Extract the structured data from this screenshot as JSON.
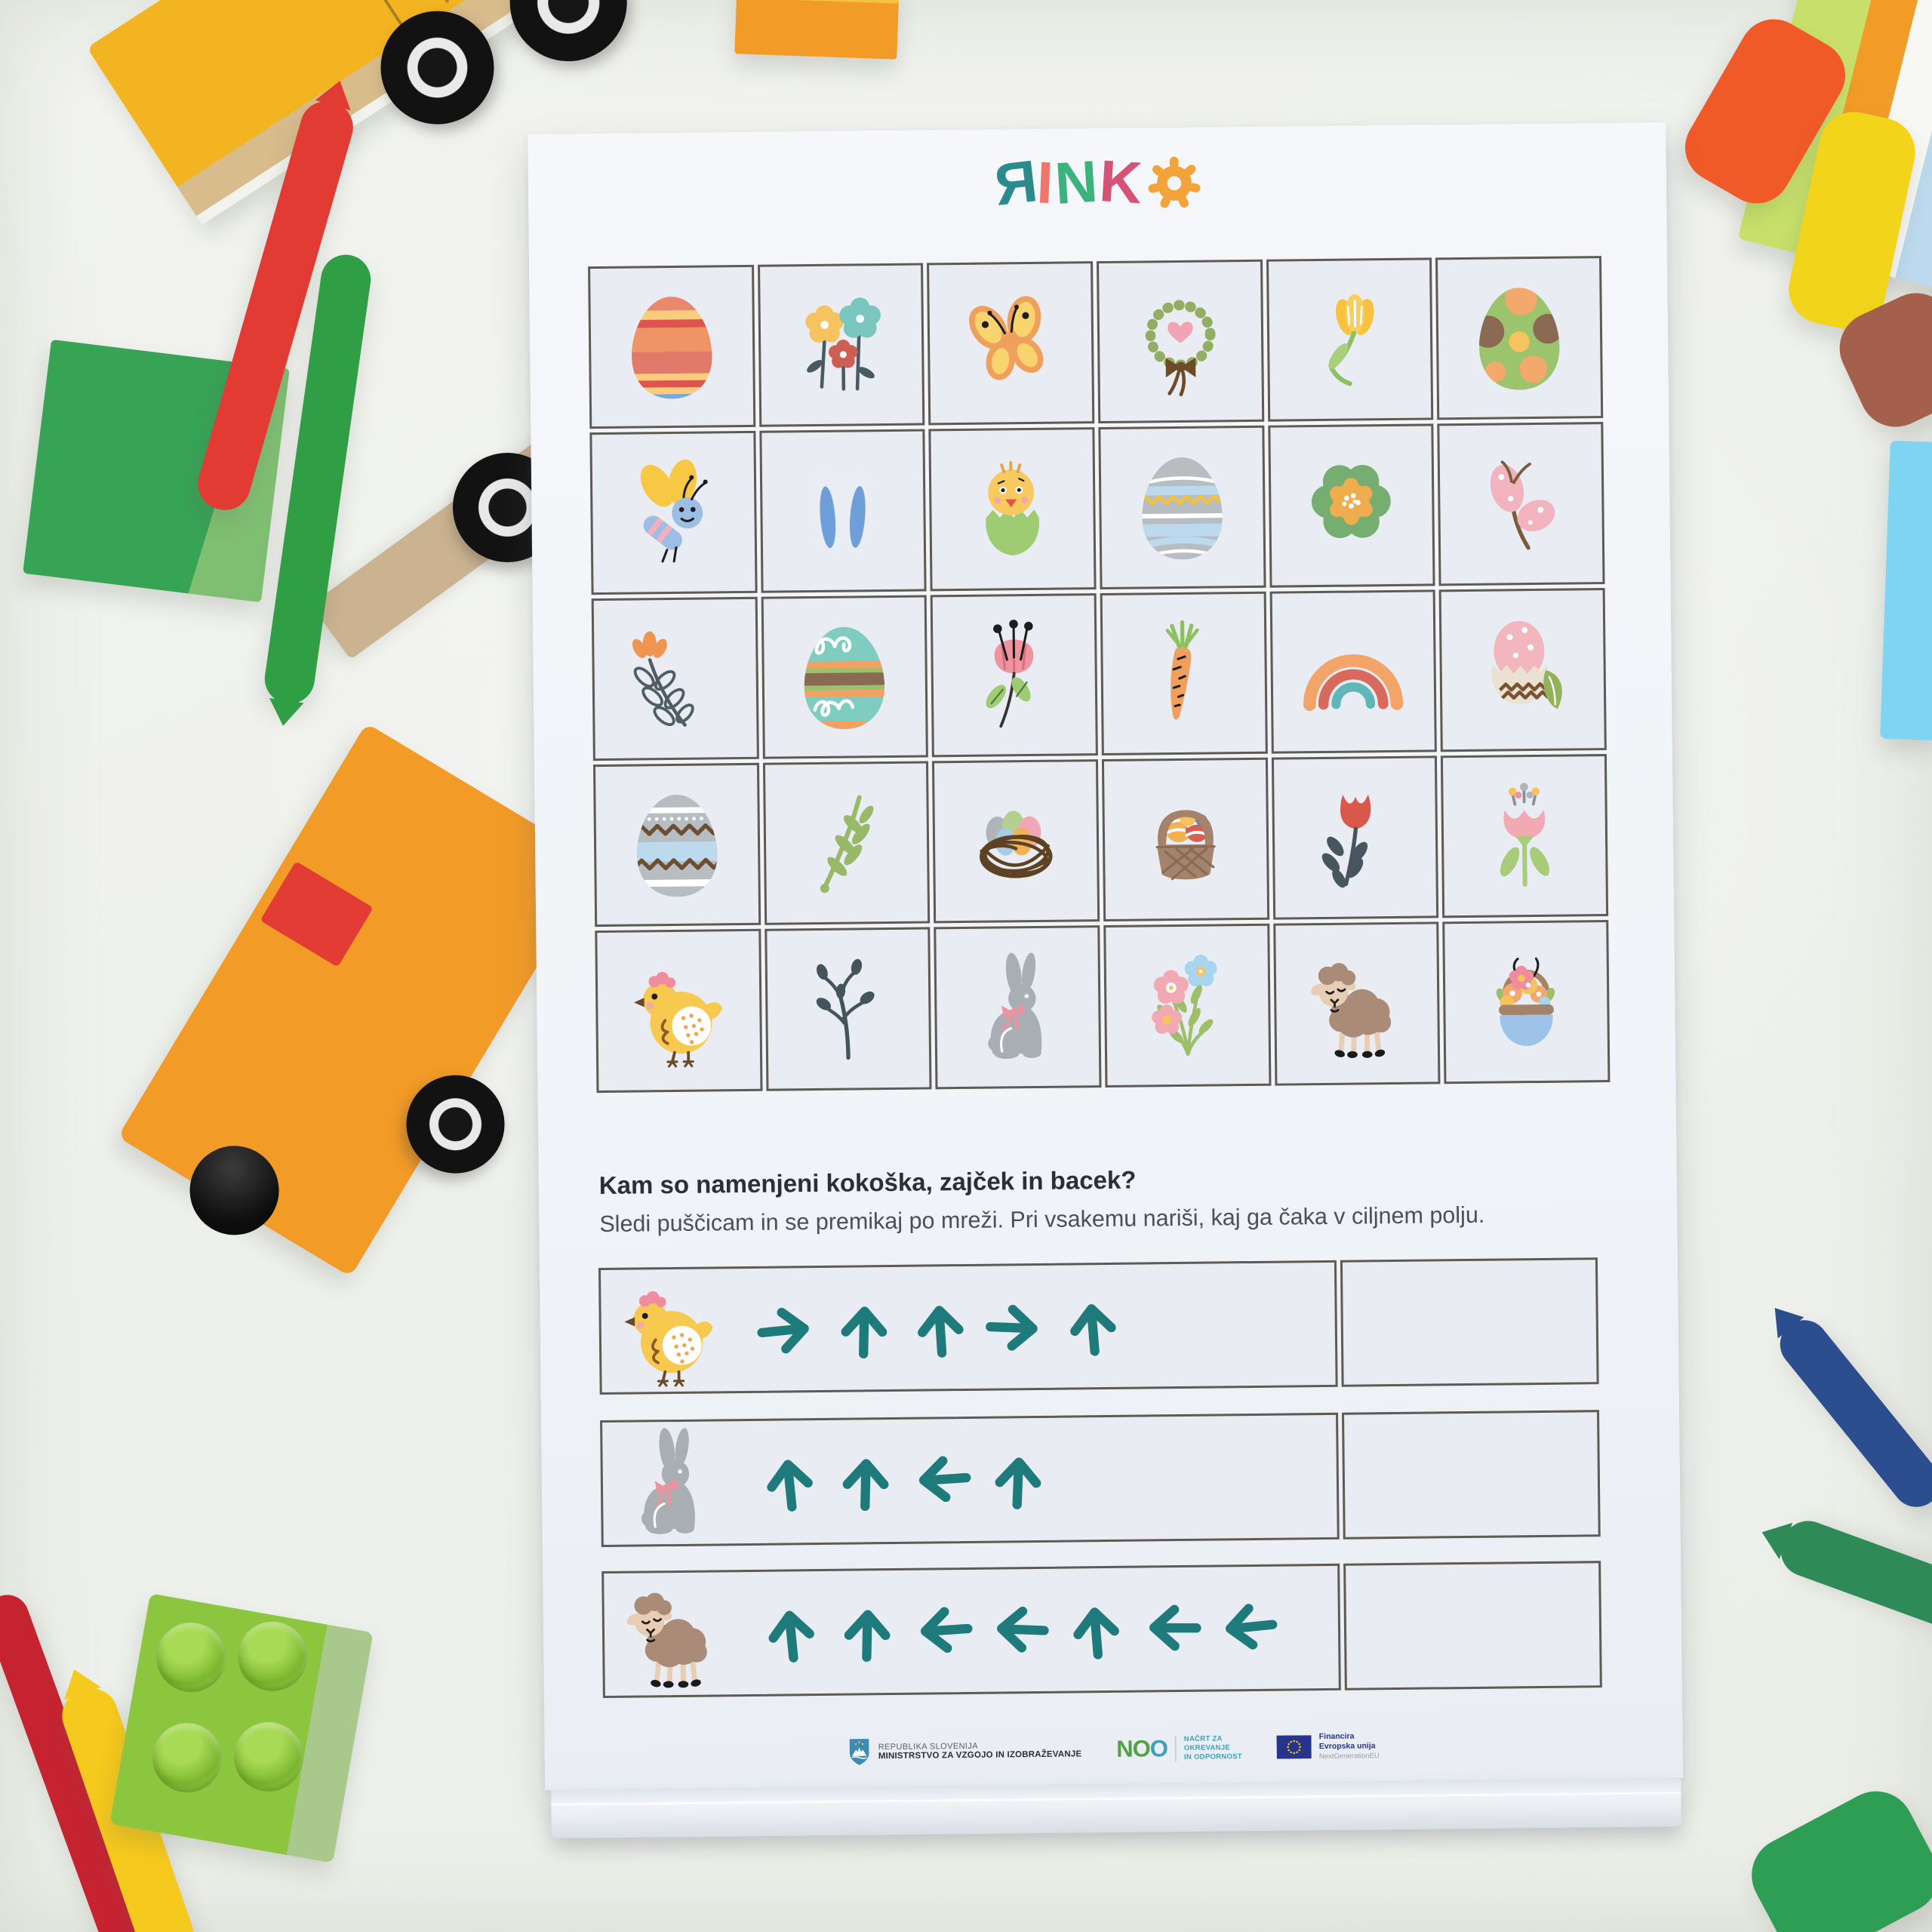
{
  "logo": {
    "brand": "RINKO",
    "letters": [
      {
        "ch": "R",
        "color": "#2a8a8c",
        "mirrored": true
      },
      {
        "ch": "I",
        "color": "#f0756b"
      },
      {
        "ch": "N",
        "color": "#3cb27d"
      },
      {
        "ch": "K",
        "color": "#d65277"
      },
      {
        "ch": "O",
        "color": "#f2a43a",
        "style": "gear"
      }
    ]
  },
  "grid": {
    "rows": [
      [
        "egg-striped",
        "flowers-trio",
        "butterfly-yellow",
        "wreath-heart",
        "tulip-yellow",
        "egg-dotted"
      ],
      [
        "dragonfly",
        "bunny-ears",
        "chick-hatching",
        "egg-waves",
        "flower-green",
        "butterfly-pink"
      ],
      [
        "flower-branch-orange",
        "egg-swirl-teal",
        "poppy-pink",
        "carrot",
        "rainbow",
        "egg-in-shell"
      ],
      [
        "egg-zigzag",
        "branch-green",
        "nest-eggs",
        "basket-eggs",
        "tulip-red",
        "tulip-pink"
      ],
      [
        "hen",
        "branch-berries",
        "bunny",
        "bouquet",
        "sheep",
        "basket-flowers"
      ]
    ]
  },
  "worksheet": {
    "question": "Kam so namenjeni kokoška, zajček in bacek?",
    "instruction": "Sledi puščicam in se premikaj po mreži. Pri vsakemu nariši, kaj ga čaka v ciljnem polju."
  },
  "tasks": [
    {
      "animal": "hen",
      "arrows": [
        "right",
        "up",
        "up",
        "right",
        "up"
      ]
    },
    {
      "animal": "bunny",
      "arrows": [
        "up",
        "up",
        "left",
        "up"
      ]
    },
    {
      "animal": "sheep",
      "arrows": [
        "up",
        "up",
        "left",
        "left",
        "up",
        "left",
        "left"
      ]
    }
  ],
  "footer": {
    "ministry": {
      "line1": "REPUBLIKA SLOVENIJA",
      "line2": "MINISTRSTVO ZA VZGOJO IN IZOBRAŽEVANJE"
    },
    "noo": {
      "abbr_n": "N",
      "abbr_o1": "O",
      "abbr_o2": "O",
      "line1": "NAČRT ZA",
      "line2": "OKREVANJE",
      "line3": "IN ODPORNOST"
    },
    "eu": {
      "line1": "Financira",
      "line2": "Evropska unija",
      "line3": "NextGenerationEU"
    }
  },
  "colors": {
    "arrow_teal": "#1e7a7b",
    "grid_line": "#5f5a54",
    "cell_bg": "#e9edf3"
  }
}
